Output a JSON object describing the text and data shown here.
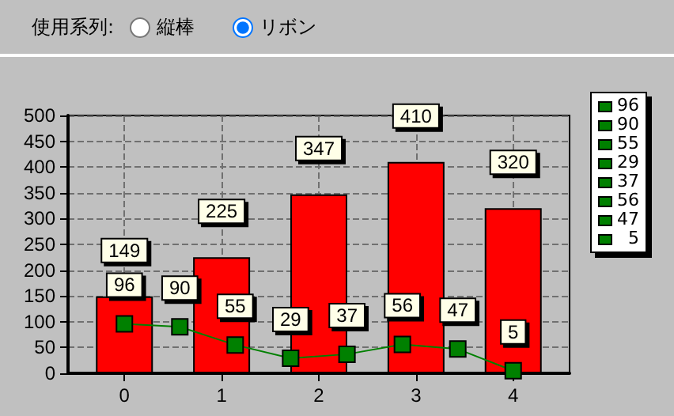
{
  "chart_data": {
    "type": "bar",
    "annotations": [
      "使用系列:",
      "縦棒",
      "リボン",
      "96",
      "90",
      "55",
      "29",
      "37",
      "56",
      "47",
      "5"
    ],
    "x": [
      0,
      1,
      2,
      3,
      4
    ],
    "xlim": [
      -0.58,
      4.58
    ],
    "xticks": [
      0,
      1,
      2,
      3,
      4
    ],
    "ylim": [
      0,
      500
    ],
    "yticks": [
      0,
      50,
      100,
      150,
      200,
      250,
      300,
      350,
      400,
      450,
      500
    ],
    "series": [
      {
        "color": "#ff0000",
        "values": [
          149,
          225,
          347,
          410,
          320
        ]
      },
      {
        "type": "line",
        "color": "#008000",
        "x": [
          0,
          0.57,
          1.14,
          1.71,
          2.29,
          2.86,
          3.43,
          4
        ],
        "values": [
          96,
          90,
          55,
          29,
          37,
          56,
          47,
          5
        ]
      }
    ],
    "data_labels": true,
    "grid": true,
    "marker": "square"
  }
}
